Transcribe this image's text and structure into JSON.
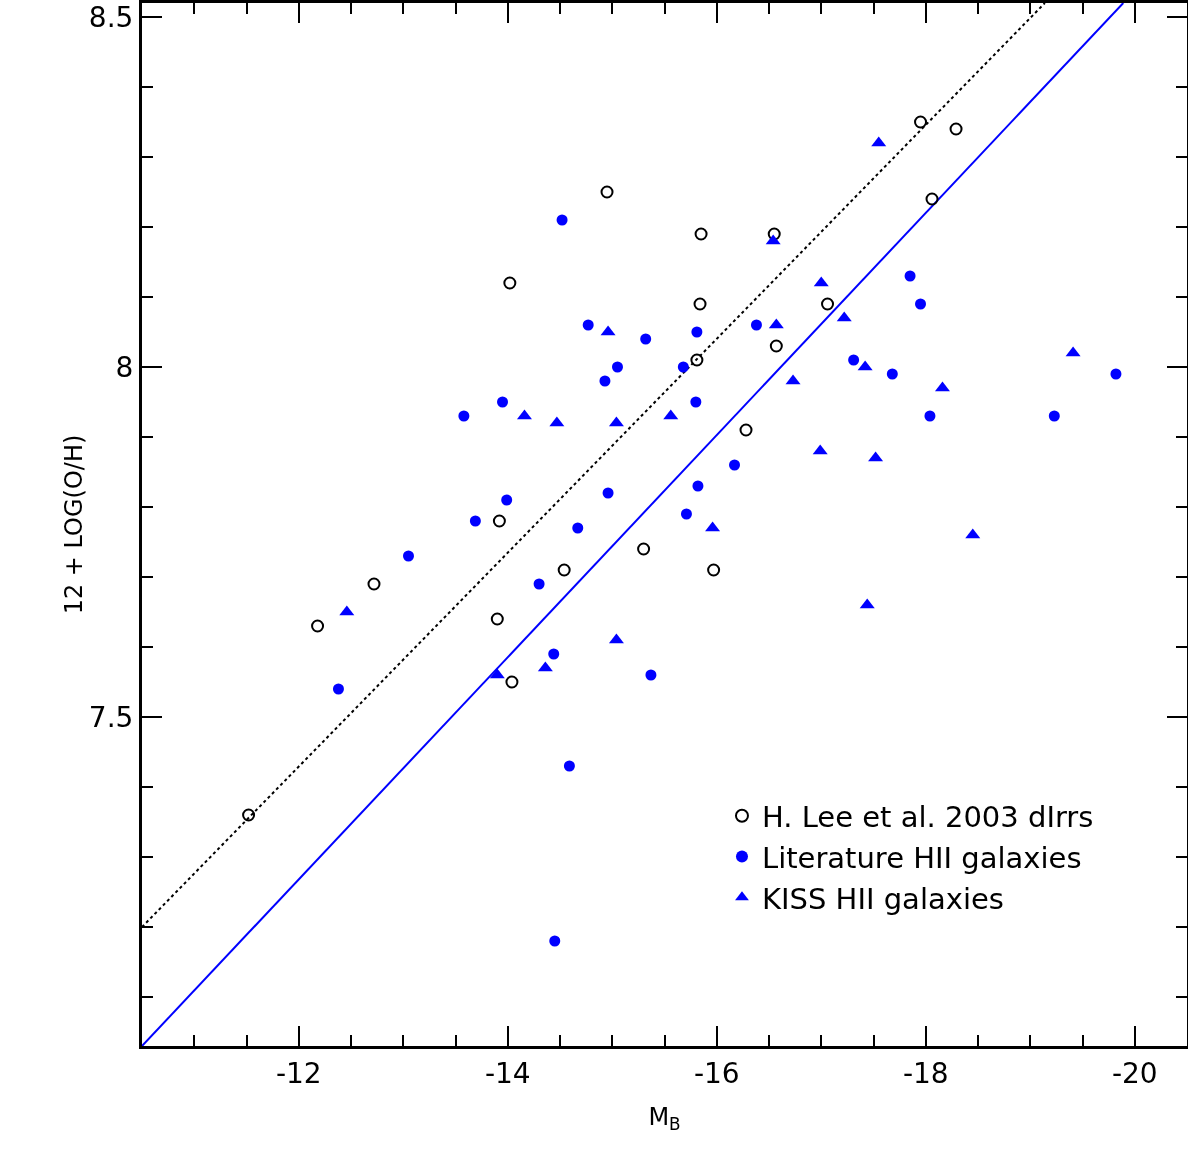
{
  "chart_data": {
    "type": "scatter",
    "xlabel": "M$_{B}$",
    "ylabel": "12 + LOG(O/H)",
    "xlim": [
      -10.5,
      -20.5
    ],
    "xticks": [
      {
        "value": -11,
        "label": null
      },
      {
        "value": -11.5,
        "label": null
      },
      -12,
      {
        "value": -12.5,
        "label": null
      },
      {
        "value": -13,
        "label": null
      },
      {
        "value": -13.5,
        "label": null
      },
      -14,
      {
        "value": -14.5,
        "label": null
      },
      {
        "value": -15,
        "label": null
      },
      {
        "value": -15.5,
        "label": null
      },
      -16,
      {
        "value": -16.5,
        "label": null
      },
      {
        "value": -17,
        "label": null
      },
      {
        "value": -17.5,
        "label": null
      },
      -18,
      {
        "value": -18.5,
        "label": null
      },
      {
        "value": -19,
        "label": null
      },
      {
        "value": -19.5,
        "label": null
      },
      -20
    ],
    "ylim": [
      7.03,
      8.52
    ],
    "yticks": [
      {
        "value": 7.1,
        "label": null
      },
      {
        "value": 7.2,
        "label": null
      },
      {
        "value": 7.3,
        "label": null
      },
      {
        "value": 7.4,
        "label": null
      },
      7.5,
      {
        "value": 7.6,
        "label": null
      },
      {
        "value": 7.7,
        "label": null
      },
      {
        "value": 7.8,
        "label": null
      },
      {
        "value": 7.9,
        "label": null
      },
      8,
      {
        "value": 8.1,
        "label": null
      },
      {
        "value": 8.2,
        "label": null
      },
      {
        "value": 8.3,
        "label": null
      },
      {
        "value": 8.4,
        "label": null
      },
      8.5
    ],
    "grid": false,
    "legend": "bottom right",
    "series": [
      {
        "name": "H. Lee et al. 2003 dIrrs",
        "color": "#000000",
        "marker": "circle-open",
        "x": [
          -11.52,
          -12.18,
          -12.72,
          -13.9,
          -13.92,
          -14.04,
          -14.02,
          -14.54,
          -14.95,
          -15.3,
          -15.81,
          -15.84,
          -15.85,
          -15.97,
          -16.28,
          -16.55,
          -16.57,
          -17.06,
          -17.95,
          -18.06,
          -18.29
        ],
        "values": [
          7.36,
          7.63,
          7.69,
          7.64,
          7.78,
          7.55,
          8.12,
          7.71,
          8.25,
          7.74,
          8.01,
          8.09,
          8.19,
          7.71,
          7.91,
          8.19,
          8.03,
          8.09,
          8.35,
          8.24,
          8.34
        ]
      },
      {
        "name": "Literature HII galaxies",
        "color": "#0000ff",
        "marker": "circle",
        "x": [
          -14.52,
          -14.77,
          -15.32,
          -15.05,
          -14.93,
          -13.95,
          -13.58,
          -13.99,
          -13.69,
          -14.96,
          -14.67,
          -13.05,
          -14.3,
          -15.81,
          -16.38,
          -15.68,
          -15.8,
          -17.85,
          -17.95,
          -17.31,
          -17.68,
          -19.82,
          -18.04,
          -19.23,
          -16.17,
          -15.82,
          -15.71,
          -12.38,
          -14.44,
          -15.37,
          -14.59,
          -14.45
        ],
        "values": [
          8.21,
          8.06,
          8.04,
          8.0,
          7.98,
          7.95,
          7.93,
          7.81,
          7.78,
          7.82,
          7.77,
          7.73,
          7.69,
          8.05,
          8.06,
          8.0,
          7.95,
          8.13,
          8.09,
          8.01,
          7.99,
          7.99,
          7.93,
          7.93,
          7.86,
          7.83,
          7.79,
          7.54,
          7.59,
          7.56,
          7.43,
          7.18
        ]
      },
      {
        "name": "KISS HII galaxies",
        "color": "#0000ff",
        "marker": "triangle",
        "x": [
          -14.96,
          -14.16,
          -14.47,
          -15.04,
          -15.56,
          -17.55,
          -16.54,
          -17.0,
          -17.22,
          -16.57,
          -17.42,
          -16.73,
          -18.16,
          -19.41,
          -16.99,
          -17.52,
          -15.96,
          -18.45,
          -12.46,
          -13.9,
          -14.36,
          -15.04,
          -17.44
        ],
        "values": [
          8.05,
          7.93,
          7.92,
          7.92,
          7.93,
          8.32,
          8.18,
          8.12,
          8.07,
          8.06,
          8.0,
          7.98,
          7.97,
          8.02,
          7.88,
          7.87,
          7.77,
          7.76,
          7.65,
          7.56,
          7.57,
          7.61,
          7.66
        ]
      },
      {
        "type": "line",
        "color": "#000000",
        "line_style": "dotted",
        "marker": "none",
        "x": [
          -10.5,
          -19.14
        ],
        "values": [
          7.2,
          8.52
        ]
      },
      {
        "type": "line",
        "color": "#0000ff",
        "line_style": "solid",
        "marker": "none",
        "x": [
          -10.5,
          -19.89
        ],
        "values": [
          7.03,
          8.52
        ]
      }
    ]
  }
}
